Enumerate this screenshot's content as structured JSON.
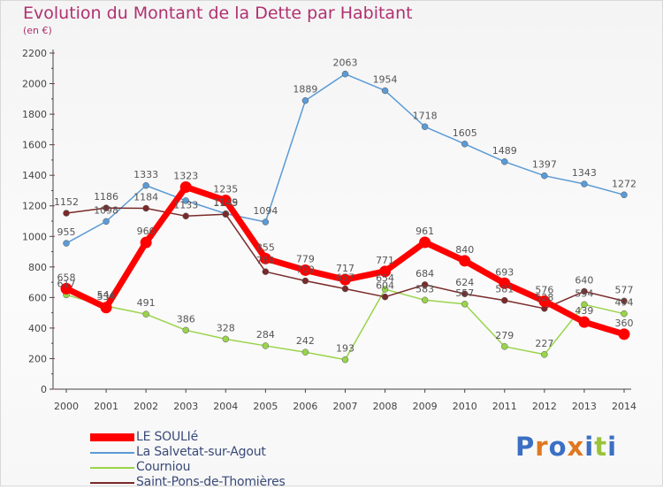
{
  "title": "Evolution du Montant de la Dette par Habitant",
  "unit": "(en €)",
  "logo_text": "Proxiti",
  "chart_data": {
    "type": "line",
    "x": [
      "2000",
      "2001",
      "2002",
      "2003",
      "2004",
      "2005",
      "2006",
      "2007",
      "2008",
      "2009",
      "2010",
      "2011",
      "2012",
      "2013",
      "2014"
    ],
    "ylim": [
      0,
      2200
    ],
    "yticks": [
      0,
      200,
      400,
      600,
      800,
      1000,
      1200,
      1400,
      1600,
      1800,
      2000,
      2200
    ],
    "grid": false,
    "legend_position": "bottom-left",
    "series": [
      {
        "name": "La Salvetat-sur-Agout",
        "color": "#5b9bd5",
        "values": [
          955,
          1098,
          1333,
          1234,
          1149,
          1094,
          1889,
          2063,
          1954,
          1718,
          1605,
          1489,
          1397,
          1343,
          1272
        ],
        "labels": [
          "955",
          "1098",
          "1333",
          "",
          "1149",
          "1094",
          "1889",
          "2063",
          "1954",
          "1718",
          "1605",
          "1489",
          "1397",
          "1343",
          "1272"
        ]
      },
      {
        "name": "Courniou",
        "color": "#99d44a",
        "values": [
          617,
          544,
          491,
          386,
          328,
          284,
          242,
          193,
          654,
          583,
          557,
          279,
          227,
          554,
          494
        ],
        "labels": [
          "617",
          "544",
          "491",
          "386",
          "328",
          "284",
          "242",
          "193",
          "654",
          "583",
          "557",
          "279",
          "227",
          "554",
          "494"
        ]
      },
      {
        "name": "Saint-Pons-de-Thomières",
        "color": "#7a2a2a",
        "values": [
          1152,
          1186,
          1184,
          1133,
          1145,
          769,
          709,
          657,
          604,
          684,
          624,
          581,
          528,
          640,
          577
        ],
        "labels": [
          "1152",
          "1186",
          "1184",
          "1133",
          "1145",
          "769",
          "709",
          "657",
          "604",
          "684",
          "624",
          "581",
          "528",
          "640",
          "577"
        ]
      },
      {
        "name": "LE SOULIé",
        "color": "#ff0000",
        "values": [
          658,
          534,
          960,
          1323,
          1235,
          855,
          779,
          717,
          771,
          961,
          840,
          693,
          576,
          439,
          360
        ],
        "labels": [
          "658",
          "534",
          "960",
          "1323",
          "1235",
          "855",
          "779",
          "717",
          "771",
          "961",
          "840",
          "693",
          "576",
          "439",
          "360"
        ]
      }
    ]
  }
}
